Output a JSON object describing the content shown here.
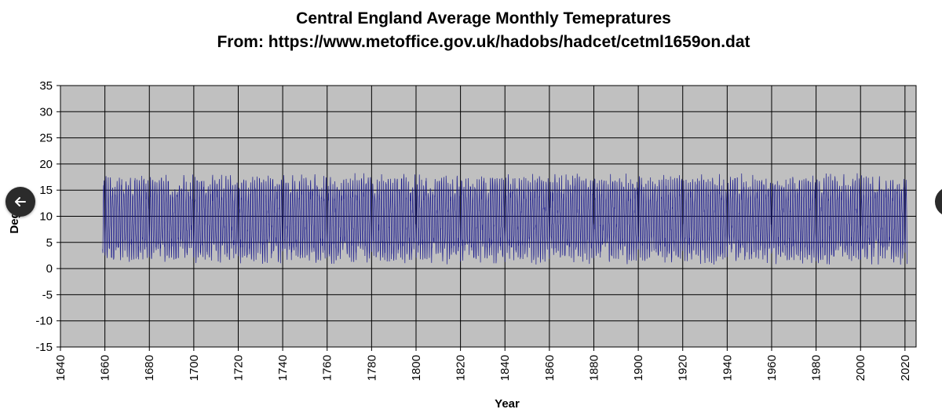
{
  "chart_data": {
    "type": "line",
    "title": "Central England Average Monthly Temepratures",
    "subtitle": "From: https://www.metoffice.gov.uk/hadobs/hadcet/cetml1659on.dat",
    "xlabel": "Year",
    "ylabel": "Deg C",
    "xlim": [
      1640,
      2025
    ],
    "ylim": [
      -15,
      35
    ],
    "x_ticks": [
      "1640",
      "1660",
      "1680",
      "1700",
      "1720",
      "1740",
      "1760",
      "1780",
      "1800",
      "1820",
      "1840",
      "1860",
      "1880",
      "1900",
      "1920",
      "1940",
      "1960",
      "1980",
      "2000",
      "2020"
    ],
    "y_ticks": [
      "35",
      "30",
      "25",
      "20",
      "15",
      "10",
      "5",
      "0",
      "-5",
      "-10",
      "-15"
    ],
    "grid": true,
    "legend": "none",
    "series": [
      {
        "x_start": 1659,
        "x_end": 2021,
        "resolution": "monthly",
        "typical_summer_peak": 16,
        "typical_winter_trough": 3,
        "approx_max": 19.7,
        "approx_min": -3.1,
        "mean": 9.3
      }
    ],
    "colors": {
      "line": "#1a1a8c",
      "plot_bg": "#c0c0c0",
      "grid": "#000000"
    }
  },
  "nav": {
    "prev_icon": "arrow-left-icon",
    "next_icon": "arrow-right-icon"
  }
}
